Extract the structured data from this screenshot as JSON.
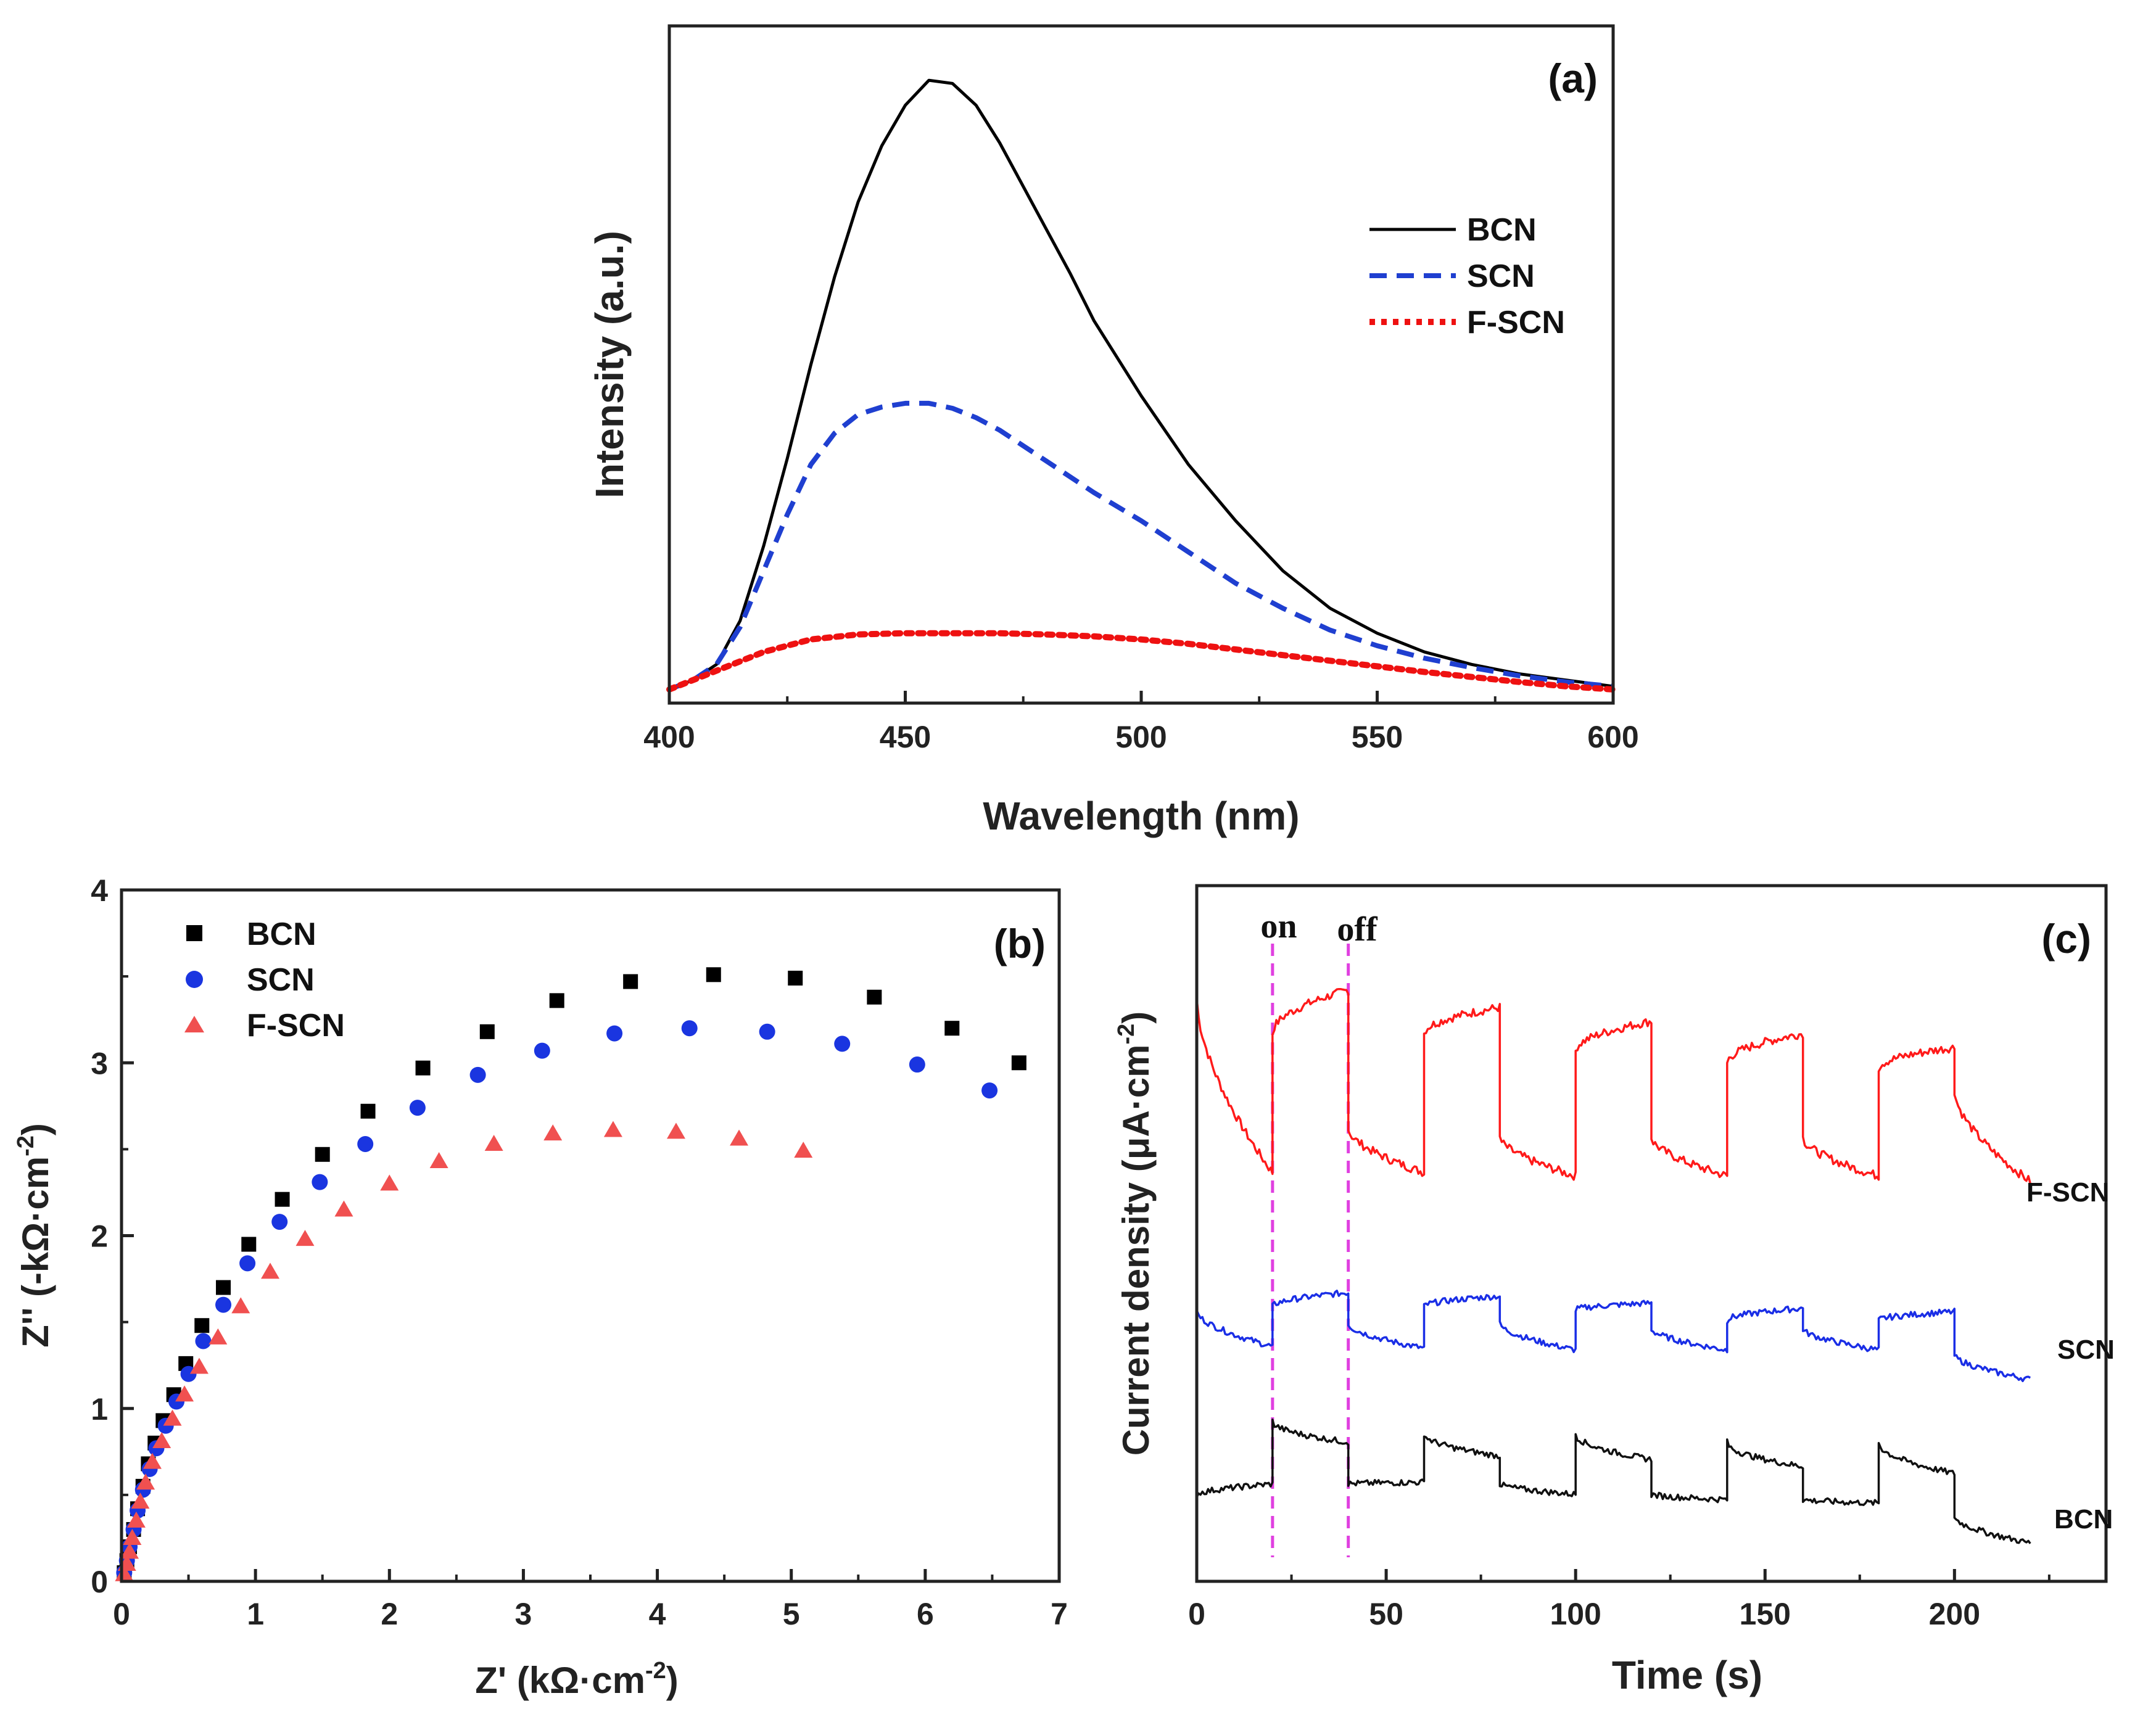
{
  "chart_data": [
    {
      "id": "a",
      "type": "line",
      "panel_label": "(a)",
      "xlabel": "Wavelength (nm)",
      "ylabel": "Intensity (a.u.)",
      "xlim": [
        400,
        600
      ],
      "ylim": [
        0,
        1.0
      ],
      "xticks": [
        "400",
        "450",
        "500",
        "550",
        "600"
      ],
      "legend_position": "top-right",
      "series": [
        {
          "name": "BCN",
          "style": "solid",
          "color": "#000000",
          "x": [
            400,
            405,
            410,
            415,
            420,
            425,
            430,
            435,
            440,
            445,
            450,
            455,
            460,
            465,
            470,
            475,
            480,
            485,
            490,
            500,
            510,
            520,
            530,
            540,
            550,
            560,
            570,
            580,
            590,
            600
          ],
          "y": [
            0.01,
            0.025,
            0.05,
            0.12,
            0.24,
            0.38,
            0.53,
            0.67,
            0.79,
            0.88,
            0.945,
            0.985,
            0.98,
            0.945,
            0.885,
            0.815,
            0.745,
            0.675,
            0.6,
            0.48,
            0.37,
            0.28,
            0.2,
            0.14,
            0.1,
            0.07,
            0.05,
            0.035,
            0.025,
            0.015
          ]
        },
        {
          "name": "SCN",
          "style": "dashed",
          "color": "#1f3fd0",
          "x": [
            400,
            405,
            410,
            415,
            420,
            425,
            430,
            435,
            440,
            445,
            450,
            455,
            460,
            465,
            470,
            480,
            490,
            500,
            510,
            520,
            530,
            540,
            550,
            560,
            570,
            580,
            590,
            600
          ],
          "y": [
            0.01,
            0.025,
            0.05,
            0.11,
            0.2,
            0.29,
            0.37,
            0.42,
            0.45,
            0.462,
            0.468,
            0.468,
            0.46,
            0.445,
            0.425,
            0.375,
            0.325,
            0.28,
            0.23,
            0.18,
            0.14,
            0.105,
            0.08,
            0.06,
            0.045,
            0.032,
            0.022,
            0.015
          ]
        },
        {
          "name": "F-SCN",
          "style": "dotted",
          "color": "#ee1111",
          "x": [
            400,
            410,
            420,
            430,
            440,
            450,
            460,
            470,
            480,
            490,
            500,
            510,
            520,
            530,
            540,
            550,
            560,
            570,
            580,
            590,
            600
          ],
          "y": [
            0.01,
            0.04,
            0.07,
            0.09,
            0.098,
            0.1,
            0.1,
            0.1,
            0.098,
            0.095,
            0.09,
            0.083,
            0.074,
            0.065,
            0.056,
            0.047,
            0.038,
            0.03,
            0.022,
            0.015,
            0.01
          ]
        }
      ]
    },
    {
      "id": "b",
      "type": "scatter",
      "panel_label": "(b)",
      "xlabel": "Z' (kΩ·cm",
      "xlabel_sup": "-2",
      "xlabel_end": ")",
      "ylabel": "Z'' (-kΩ·cm",
      "ylabel_sup": "-2",
      "ylabel_end": ")",
      "xlim": [
        0,
        7
      ],
      "ylim": [
        0,
        4
      ],
      "xticks": [
        "0",
        "1",
        "2",
        "3",
        "4",
        "5",
        "6",
        "7"
      ],
      "yticks": [
        "0",
        "1",
        "2",
        "3",
        "4"
      ],
      "legend_position": "top-left",
      "series": [
        {
          "name": "BCN",
          "marker": "square",
          "color": "#000000",
          "x": [
            0.02,
            0.04,
            0.06,
            0.09,
            0.12,
            0.16,
            0.2,
            0.25,
            0.31,
            0.39,
            0.48,
            0.6,
            0.76,
            0.95,
            1.2,
            1.5,
            1.84,
            2.25,
            2.73,
            3.25,
            3.8,
            4.42,
            5.03,
            5.62,
            6.2,
            6.7
          ],
          "y": [
            0.05,
            0.12,
            0.2,
            0.3,
            0.42,
            0.55,
            0.68,
            0.8,
            0.93,
            1.08,
            1.26,
            1.48,
            1.7,
            1.95,
            2.21,
            2.47,
            2.72,
            2.97,
            3.18,
            3.36,
            3.47,
            3.51,
            3.49,
            3.38,
            3.2,
            3.0
          ]
        },
        {
          "name": "SCN",
          "marker": "circle",
          "color": "#1a35e0",
          "x": [
            0.02,
            0.04,
            0.06,
            0.09,
            0.12,
            0.16,
            0.21,
            0.26,
            0.33,
            0.41,
            0.5,
            0.61,
            0.76,
            0.94,
            1.18,
            1.48,
            1.82,
            2.21,
            2.66,
            3.14,
            3.68,
            4.24,
            4.82,
            5.38,
            5.94,
            6.48
          ],
          "y": [
            0.05,
            0.12,
            0.2,
            0.3,
            0.41,
            0.53,
            0.65,
            0.77,
            0.9,
            1.04,
            1.2,
            1.39,
            1.6,
            1.84,
            2.08,
            2.31,
            2.53,
            2.74,
            2.93,
            3.07,
            3.17,
            3.2,
            3.18,
            3.11,
            2.99,
            2.84
          ]
        },
        {
          "name": "F-SCN",
          "marker": "triangle",
          "color": "#f05050",
          "x": [
            0.02,
            0.04,
            0.06,
            0.08,
            0.11,
            0.14,
            0.18,
            0.23,
            0.3,
            0.38,
            0.47,
            0.58,
            0.72,
            0.89,
            1.11,
            1.37,
            1.66,
            2.0,
            2.37,
            2.78,
            3.22,
            3.67,
            4.14,
            4.61,
            5.09
          ],
          "y": [
            0.04,
            0.1,
            0.17,
            0.25,
            0.35,
            0.46,
            0.57,
            0.69,
            0.81,
            0.94,
            1.08,
            1.24,
            1.41,
            1.59,
            1.79,
            1.98,
            2.15,
            2.3,
            2.43,
            2.53,
            2.59,
            2.61,
            2.6,
            2.56,
            2.49
          ]
        }
      ]
    },
    {
      "id": "c",
      "type": "line",
      "panel_label": "(c)",
      "xlabel": "Time (s)",
      "ylabel": "Current density (μA·cm",
      "ylabel_sup": "-2",
      "ylabel_end": ")",
      "xlim": [
        0,
        240
      ],
      "xticks": [
        "0",
        "50",
        "100",
        "150",
        "200"
      ],
      "annotations": [
        {
          "text": "on",
          "x": 20
        },
        {
          "text": "off",
          "x": 40
        }
      ],
      "series": [
        {
          "name": "F-SCN",
          "color": "#ff1a1a",
          "cycles": [
            {
              "on": 20,
              "off": 40,
              "dark_start": 3.35,
              "dark_end": 2.35,
              "light_start": 3.15,
              "light_end": 3.4
            },
            {
              "on": 60,
              "off": 80,
              "dark_start": 2.6,
              "dark_end": 2.35,
              "light_start": 3.15,
              "light_end": 3.3
            },
            {
              "on": 100,
              "off": 120,
              "dark_start": 2.55,
              "dark_end": 2.33,
              "light_start": 3.05,
              "light_end": 3.22
            },
            {
              "on": 140,
              "off": 160,
              "dark_start": 2.55,
              "dark_end": 2.33,
              "light_start": 2.98,
              "light_end": 3.15
            },
            {
              "on": 180,
              "off": 200,
              "dark_start": 2.55,
              "dark_end": 2.33,
              "light_start": 2.95,
              "light_end": 3.07
            }
          ],
          "tail_end_time": 220,
          "tail_end_value": 2.3
        },
        {
          "name": "SCN",
          "color": "#1a2ee6",
          "cycles": [
            {
              "on": 20,
              "off": 40,
              "dark_start": 1.55,
              "dark_end": 1.35,
              "light_start": 1.58,
              "light_end": 1.66
            },
            {
              "on": 60,
              "off": 80,
              "dark_start": 1.48,
              "dark_end": 1.34,
              "light_start": 1.58,
              "light_end": 1.64
            },
            {
              "on": 100,
              "off": 120,
              "dark_start": 1.48,
              "dark_end": 1.33,
              "light_start": 1.56,
              "light_end": 1.6
            },
            {
              "on": 140,
              "off": 160,
              "dark_start": 1.45,
              "dark_end": 1.33,
              "light_start": 1.5,
              "light_end": 1.57
            },
            {
              "on": 180,
              "off": 200,
              "dark_start": 1.45,
              "dark_end": 1.33,
              "light_start": 1.5,
              "light_end": 1.55
            }
          ],
          "tail_end_time": 220,
          "tail_end_value": 1.16
        },
        {
          "name": "BCN",
          "color": "#111111",
          "cycles": [
            {
              "on": 20,
              "off": 40,
              "dark_start": 0.5,
              "dark_end": 0.56,
              "light_start": 0.92,
              "light_end": 0.8
            },
            {
              "on": 60,
              "off": 80,
              "dark_start": 0.56,
              "dark_end": 0.57,
              "light_start": 0.85,
              "light_end": 0.72
            },
            {
              "on": 100,
              "off": 120,
              "dark_start": 0.56,
              "dark_end": 0.5,
              "light_start": 0.85,
              "light_end": 0.7
            },
            {
              "on": 140,
              "off": 160,
              "dark_start": 0.5,
              "dark_end": 0.47,
              "light_start": 0.8,
              "light_end": 0.66
            },
            {
              "on": 180,
              "off": 200,
              "dark_start": 0.47,
              "dark_end": 0.45,
              "light_start": 0.8,
              "light_end": 0.62
            }
          ],
          "tail_end_time": 220,
          "tail_end_value": 0.22
        }
      ]
    }
  ]
}
